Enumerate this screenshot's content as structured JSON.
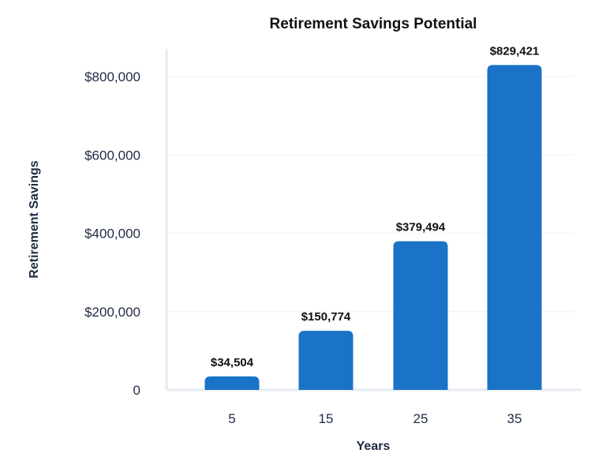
{
  "chart_data": {
    "type": "bar",
    "title": "Retirement Savings Potential",
    "xlabel": "Years",
    "ylabel": "Retirement Savings",
    "categories": [
      "5",
      "15",
      "25",
      "35"
    ],
    "values": [
      34504,
      150774,
      379494,
      829421
    ],
    "data_labels": [
      "$34,504",
      "$150,774",
      "$379,494",
      "$829,421"
    ],
    "y_ticks": [
      0,
      200000,
      400000,
      600000,
      800000
    ],
    "y_tick_labels": [
      "0",
      "$200,000",
      "$400,000",
      "$600,000",
      "$800,000"
    ],
    "ylim": [
      0,
      800000
    ],
    "grid": true,
    "legend": "none",
    "bar_color": "#1a73c6",
    "grid_color": "#eef1f5",
    "axis_color": "#e6ebf2"
  }
}
